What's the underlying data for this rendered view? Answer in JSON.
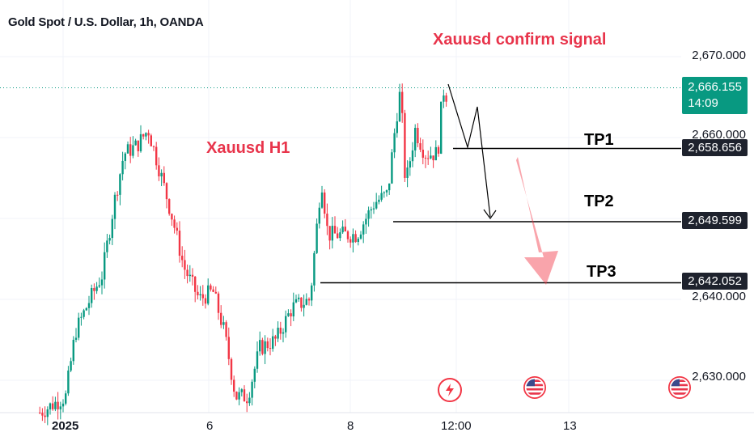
{
  "header": {
    "title": "Gold Spot / U.S. Dollar, 1h, OANDA"
  },
  "annotations": {
    "signal": "Xauusd confirm signal",
    "timeframe": "Xauusd H1",
    "tp1": "TP1",
    "tp2": "TP2",
    "tp3": "TP3"
  },
  "price_axis": {
    "ticks": [
      "2,670.000",
      "2,660.000",
      "2,640.000",
      "2,630.000"
    ],
    "current_price": "2,666.155",
    "countdown": "14:09",
    "tp1_price": "2,658.656",
    "tp2_price": "2,649.599",
    "tp3_price": "2,642.052"
  },
  "time_axis": {
    "ticks": [
      "2025",
      "6",
      "8",
      "12:00",
      "13"
    ]
  },
  "colors": {
    "up": "#089981",
    "down": "#f23645",
    "accent_red": "#e8344b"
  },
  "events": [
    {
      "icon": "lightning-icon",
      "color": "#f23645"
    },
    {
      "icon": "us-flag-icon",
      "color": "#f23645"
    },
    {
      "icon": "us-flag-icon",
      "color": "#f23645"
    }
  ],
  "chart_data": {
    "type": "candlestick",
    "symbol": "Gold Spot / U.S. Dollar",
    "interval": "1h",
    "ylim": [
      2626,
      2672
    ],
    "levels": [
      2658.656,
      2649.599,
      2642.052
    ],
    "current": 2666.155
  }
}
